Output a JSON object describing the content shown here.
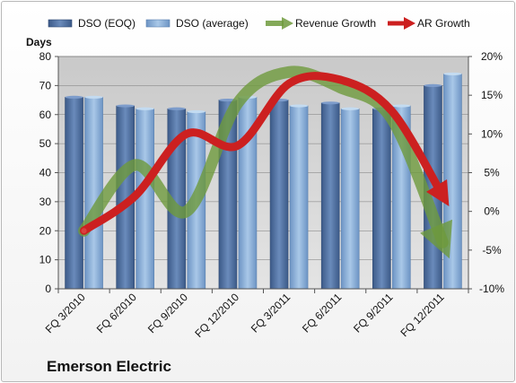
{
  "company_name": "Emerson Electric",
  "chart_data": {
    "type": "bar",
    "title": "",
    "ylabel": "Days",
    "y2label": "",
    "ylim": [
      0,
      80
    ],
    "yticks": [
      0,
      10,
      20,
      30,
      40,
      50,
      60,
      70,
      80
    ],
    "y2lim": [
      -10,
      20
    ],
    "y2ticks": [
      "-10%",
      "-5%",
      "0%",
      "5%",
      "10%",
      "15%",
      "20%"
    ],
    "grid": true,
    "legend_position": "top",
    "categories": [
      "FQ 3/2010",
      "FQ 6/2010",
      "FQ 9/2010",
      "FQ 12/2010",
      "FQ 3/2011",
      "FQ 6/2011",
      "FQ 9/2011",
      "FQ 12/2011"
    ],
    "series": [
      {
        "name": "DSO (EOQ)",
        "type": "bar",
        "axis": "left",
        "color": "#4f6f9f",
        "values": [
          66,
          63,
          62,
          65,
          65,
          64,
          62,
          70
        ]
      },
      {
        "name": "DSO (average)",
        "type": "bar",
        "axis": "left",
        "color": "#8fb4dc",
        "values": [
          66,
          62,
          61,
          66,
          63,
          62,
          63,
          74
        ]
      },
      {
        "name": "Revenue Growth",
        "type": "line",
        "axis": "right",
        "color": "#6e9a3c",
        "values": [
          -2.5,
          6,
          0,
          14,
          18,
          16,
          12,
          -4
        ]
      },
      {
        "name": "AR Growth",
        "type": "line",
        "axis": "right",
        "color": "#cc2020",
        "values": [
          -2.5,
          2,
          10,
          8.5,
          16.5,
          17,
          13,
          2
        ]
      }
    ]
  }
}
